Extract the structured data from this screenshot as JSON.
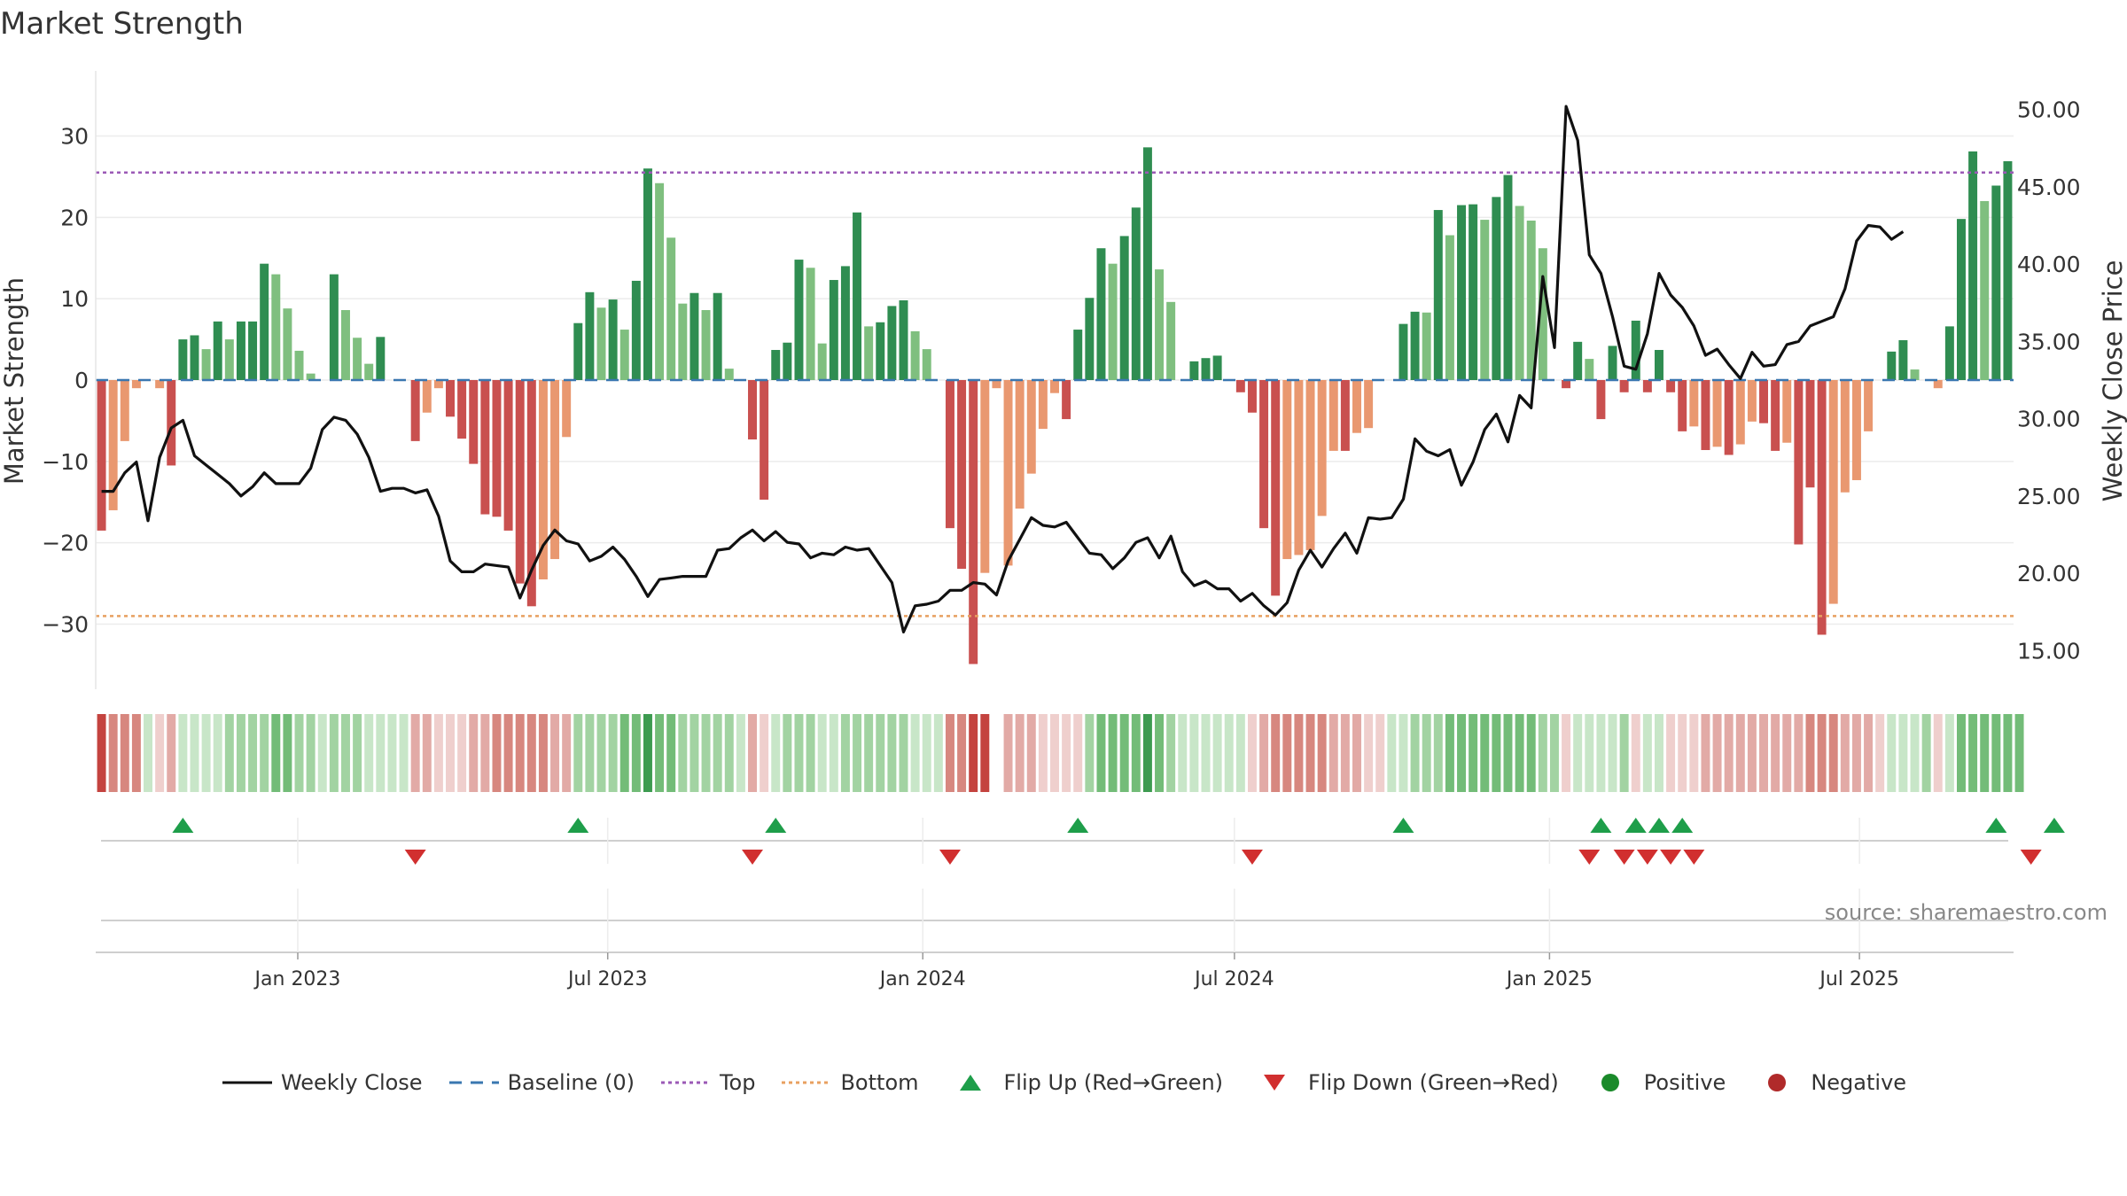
{
  "chart_data": {
    "type": "bar",
    "title": "Market Strength",
    "ylabel": "Market Strength",
    "y2label": "Weekly Close Price",
    "ylim": [
      -38,
      38
    ],
    "y2lim": [
      12.5,
      52.5
    ],
    "yticks": [
      -30,
      -20,
      -10,
      0,
      10,
      20,
      30
    ],
    "yticklabels": [
      "−30",
      "−20",
      "−10",
      "0",
      "10",
      "20",
      "30"
    ],
    "y2ticks": [
      15,
      20,
      25,
      30,
      35,
      40,
      45,
      50
    ],
    "y2ticklabels": [
      "15.00",
      "20.00",
      "25.00",
      "30.00",
      "35.00",
      "40.00",
      "45.00",
      "50.00"
    ],
    "top_level": 25.5,
    "bottom_level": -29,
    "x_start": "2022-09-05",
    "x_end": "2025-09-29",
    "xticks": [
      "2023-01-01",
      "2023-07-01",
      "2024-01-01",
      "2024-07-01",
      "2025-01-01",
      "2025-07-01"
    ],
    "xticklabels": [
      "Jan 2023",
      "Jul 2023",
      "Jan 2024",
      "Jul 2024",
      "Jan 2025",
      "Jul 2025"
    ],
    "series": [
      {
        "name": "Market Strength",
        "values": [
          -18.5,
          -16,
          -7.5,
          -1,
          0,
          -1,
          -10.5,
          5,
          5.5,
          3.8,
          7.2,
          5,
          7.2,
          7.2,
          14.3,
          13,
          8.8,
          3.6,
          0.8,
          0,
          13,
          8.6,
          5.2,
          2,
          5.3,
          0,
          0,
          -7.5,
          -4,
          -1,
          -4.5,
          -7.2,
          -10.3,
          -16.5,
          -16.8,
          -18.5,
          -25,
          -27.8,
          -24.5,
          -22,
          -7,
          7,
          10.8,
          8.9,
          9.9,
          6.2,
          12.2,
          26,
          24.2,
          17.5,
          9.4,
          10.7,
          8.6,
          10.7,
          1.4,
          0,
          -7.3,
          -14.7,
          3.7,
          4.6,
          14.8,
          13.8,
          4.5,
          12.3,
          14,
          20.6,
          6.6,
          7.1,
          9.1,
          9.8,
          6,
          3.8,
          0,
          -18.2,
          -23.2,
          -34.9,
          -23.7,
          -1,
          -22.8,
          -15.8,
          -11.5,
          -6,
          -1.6,
          -4.8,
          6.2,
          10.1,
          16.2,
          14.3,
          17.7,
          21.2,
          28.6,
          13.6,
          9.6,
          0,
          2.3,
          2.7,
          3,
          0,
          -1.5,
          -4,
          -18.2,
          -26.5,
          -22,
          -21.5,
          -20.9,
          -16.7,
          -8.7,
          -8.7,
          -6.5,
          -5.9,
          0,
          0,
          6.9,
          8.4,
          8.3,
          20.9,
          17.8,
          21.5,
          21.6,
          19.7,
          22.5,
          25.2,
          21.4,
          19.6,
          16.2,
          0,
          -1,
          4.7,
          2.6,
          -4.8,
          4.2,
          -1.5,
          7.3,
          -1.5,
          3.7,
          -1.5,
          -6.3,
          -5.7,
          -8.6,
          -8.2,
          -9.2,
          -7.9,
          -5.1,
          -5.3,
          -8.7,
          -7.7,
          -20.2,
          -13.2,
          -31.3,
          -27.5,
          -13.8,
          -12.3,
          -6.3,
          0,
          3.5,
          4.9,
          1.3,
          0,
          -1,
          6.6,
          19.8,
          28.1,
          22,
          23.9,
          26.9
        ],
        "colors": [
          "#c9504f",
          "#e99870",
          "#e99870",
          "#e99870",
          "#e0e0e0",
          "#e99870",
          "#c9504f",
          "#2f8d51",
          "#2f8d51",
          "#7fbf7f",
          "#2f8d51",
          "#7fbf7f",
          "#2f8d51",
          "#2f8d51",
          "#2f8d51",
          "#7fbf7f",
          "#7fbf7f",
          "#7fbf7f",
          "#7fbf7f",
          "#e0e0e0",
          "#2f8d51",
          "#7fbf7f",
          "#7fbf7f",
          "#7fbf7f",
          "#2f8d51",
          "#e0e0e0",
          "#e0e0e0",
          "#c9504f",
          "#e99870",
          "#e99870",
          "#c9504f",
          "#c9504f",
          "#c9504f",
          "#c9504f",
          "#c9504f",
          "#c9504f",
          "#c9504f",
          "#c9504f",
          "#e99870",
          "#e99870",
          "#e99870",
          "#2f8d51",
          "#2f8d51",
          "#7fbf7f",
          "#2f8d51",
          "#7fbf7f",
          "#2f8d51",
          "#2f8d51",
          "#7fbf7f",
          "#7fbf7f",
          "#7fbf7f",
          "#2f8d51",
          "#7fbf7f",
          "#2f8d51",
          "#7fbf7f",
          "#e0e0e0",
          "#c9504f",
          "#c9504f",
          "#2f8d51",
          "#2f8d51",
          "#2f8d51",
          "#7fbf7f",
          "#7fbf7f",
          "#2f8d51",
          "#2f8d51",
          "#2f8d51",
          "#7fbf7f",
          "#2f8d51",
          "#2f8d51",
          "#2f8d51",
          "#7fbf7f",
          "#7fbf7f",
          "#e0e0e0",
          "#c9504f",
          "#c9504f",
          "#c9504f",
          "#e99870",
          "#e99870",
          "#e99870",
          "#e99870",
          "#e99870",
          "#e99870",
          "#e99870",
          "#c9504f",
          "#2f8d51",
          "#2f8d51",
          "#2f8d51",
          "#7fbf7f",
          "#2f8d51",
          "#2f8d51",
          "#2f8d51",
          "#7fbf7f",
          "#7fbf7f",
          "#e0e0e0",
          "#2f8d51",
          "#2f8d51",
          "#2f8d51",
          "#e0e0e0",
          "#c9504f",
          "#c9504f",
          "#c9504f",
          "#c9504f",
          "#e99870",
          "#e99870",
          "#e99870",
          "#e99870",
          "#e99870",
          "#c9504f",
          "#e99870",
          "#e99870",
          "#e0e0e0",
          "#e0e0e0",
          "#2f8d51",
          "#2f8d51",
          "#7fbf7f",
          "#2f8d51",
          "#7fbf7f",
          "#2f8d51",
          "#2f8d51",
          "#7fbf7f",
          "#2f8d51",
          "#2f8d51",
          "#7fbf7f",
          "#7fbf7f",
          "#7fbf7f",
          "#e0e0e0",
          "#c9504f",
          "#2f8d51",
          "#7fbf7f",
          "#c9504f",
          "#2f8d51",
          "#c9504f",
          "#2f8d51",
          "#c9504f",
          "#2f8d51",
          "#c9504f",
          "#c9504f",
          "#e99870",
          "#c9504f",
          "#e99870",
          "#c9504f",
          "#e99870",
          "#e99870",
          "#c9504f",
          "#c9504f",
          "#e99870",
          "#c9504f",
          "#c9504f",
          "#c9504f",
          "#e99870",
          "#e99870",
          "#e99870",
          "#e99870",
          "#e0e0e0",
          "#2f8d51",
          "#2f8d51",
          "#7fbf7f",
          "#e0e0e0",
          "#e99870",
          "#2f8d51",
          "#2f8d51",
          "#2f8d51",
          "#7fbf7f",
          "#2f8d51",
          "#2f8d51"
        ]
      },
      {
        "name": "Weekly Close",
        "axis": "right",
        "color": "#111111",
        "values": [
          25.3,
          25.3,
          26.5,
          27.2,
          23.4,
          27.5,
          29.4,
          29.9,
          27.6,
          27,
          26.4,
          25.8,
          25,
          25.6,
          26.5,
          25.8,
          25.8,
          25.8,
          26.8,
          29.3,
          30.1,
          29.9,
          29,
          27.5,
          25.3,
          25.5,
          25.5,
          25.2,
          25.4,
          23.7,
          20.8,
          20.1,
          20.1,
          20.6,
          20.5,
          20.4,
          18.4,
          20.2,
          21.8,
          22.8,
          22.1,
          21.9,
          20.8,
          21.1,
          21.7,
          20.9,
          19.8,
          18.5,
          19.6,
          19.7,
          19.8,
          19.8,
          19.8,
          21.5,
          21.6,
          22.3,
          22.8,
          22.1,
          22.7,
          22,
          21.9,
          21,
          21.3,
          21.2,
          21.7,
          21.5,
          21.6,
          20.5,
          19.4,
          16.2,
          17.9,
          18,
          18.2,
          18.9,
          18.9,
          19.4,
          19.3,
          18.6,
          20.8,
          22.2,
          23.6,
          23.1,
          23,
          23.3,
          22.3,
          21.3,
          21.2,
          20.3,
          21,
          22,
          22.3,
          21,
          22.4,
          20.1,
          19.2,
          19.5,
          19,
          19,
          18.2,
          18.7,
          17.9,
          17.3,
          18.1,
          20.2,
          21.5,
          20.4,
          21.6,
          22.6,
          21.3,
          23.6,
          23.5,
          23.6,
          24.8,
          28.7,
          27.9,
          27.6,
          28,
          25.7,
          27.2,
          29.3,
          30.3,
          28.5,
          31.5,
          30.7,
          39.2,
          34.6,
          50.2,
          48,
          40.6,
          39.4,
          36.6,
          33.4,
          33.2,
          35.5,
          39.4,
          38,
          37.2,
          36,
          34.1,
          34.5,
          33.5,
          32.6,
          34.3,
          33.4,
          33.5,
          34.8,
          35,
          36,
          36.3,
          36.6,
          38.4,
          41.5,
          42.5,
          42.4,
          41.6,
          42.1
        ],
        "band_palette": [
          "#c4433f",
          "#d7877f",
          "#e2aaa6",
          "#efcfcd",
          "#c8e6c8",
          "#a2d3a2",
          "#73bc78",
          "#3d9b50"
        ],
        "band_levels": [
          0,
          1,
          1,
          1,
          4,
          3,
          2,
          4,
          4,
          4,
          4,
          5,
          5,
          5,
          5,
          6,
          6,
          5,
          5,
          4,
          5,
          5,
          5,
          4,
          4,
          4,
          4,
          2,
          2,
          3,
          3,
          3,
          2,
          2,
          1,
          1,
          1,
          1,
          1,
          2,
          2,
          5,
          5,
          5,
          5,
          6,
          6,
          7,
          6,
          6,
          5,
          5,
          5,
          5,
          5,
          4,
          2,
          3,
          4,
          5,
          5,
          5,
          4,
          4,
          5,
          5,
          5,
          5,
          5,
          5,
          4,
          4,
          4,
          1,
          1,
          0,
          0,
          6,
          2,
          2,
          2,
          3,
          3,
          3,
          3,
          5,
          6,
          6,
          6,
          6,
          7,
          6,
          5,
          4,
          4,
          4,
          4,
          4,
          4,
          3,
          2,
          1,
          1,
          1,
          1,
          1,
          2,
          2,
          2,
          3,
          3,
          4,
          4,
          5,
          5,
          5,
          6,
          6,
          6,
          6,
          6,
          6,
          6,
          6,
          5,
          5,
          3,
          4,
          4,
          4,
          4,
          5,
          3,
          4,
          4,
          3,
          3,
          3,
          2,
          2,
          2,
          2,
          2,
          2,
          2,
          2,
          2,
          1,
          1,
          1,
          2,
          2,
          2,
          3,
          4,
          4,
          4,
          5,
          3,
          4,
          6,
          6,
          6,
          6,
          6,
          6
        ],
        "band_gap_index": 77
      },
      {
        "name": "Flip Up (Red→Green)",
        "color": "#1e9e4a",
        "indices": [
          7,
          41,
          58,
          84,
          112,
          129,
          132,
          134,
          136,
          163,
          168
        ]
      },
      {
        "name": "Flip Down (Green→Red)",
        "color": "#d12f2f",
        "indices": [
          27,
          56,
          73,
          99,
          128,
          131,
          133,
          135,
          137,
          166
        ]
      }
    ],
    "legend": [
      {
        "label": "Weekly Close",
        "type": "line",
        "color": "#111111"
      },
      {
        "label": "Baseline (0)",
        "type": "dashed",
        "color": "#3a77b0"
      },
      {
        "label": "Top",
        "type": "dotted",
        "color": "#9b59b6"
      },
      {
        "label": "Bottom",
        "type": "dotted",
        "color": "#e8a060"
      },
      {
        "label": "Flip Up (Red→Green)",
        "type": "triangle-up",
        "color": "#1e9e4a"
      },
      {
        "label": "Flip Down (Green→Red)",
        "type": "triangle-down",
        "color": "#d12f2f"
      },
      {
        "label": "Positive",
        "type": "circle",
        "color": "#1a8a2a"
      },
      {
        "label": "Negative",
        "type": "circle",
        "color": "#b02a2a"
      }
    ],
    "legend_position": "bottom-center",
    "source": "source: sharemaestro.com"
  }
}
